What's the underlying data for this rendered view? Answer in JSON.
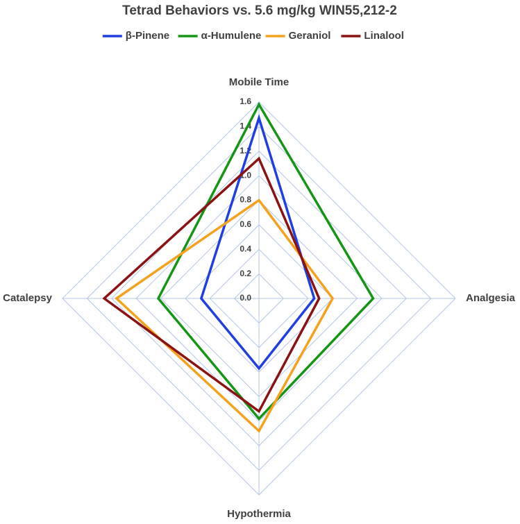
{
  "chart_data": {
    "type": "radar",
    "title": "Tetrad Behaviors vs. 5.6 mg/kg WIN55,212-2",
    "categories": [
      "Mobile Time",
      "Analgesia",
      "Hypothermia",
      "Catalepsy"
    ],
    "series": [
      {
        "name": "β-Pinene",
        "color": "#1f3fe0",
        "values": [
          1.47,
          0.45,
          0.57,
          0.47
        ]
      },
      {
        "name": "α-Humulene",
        "color": "#139613",
        "values": [
          1.58,
          0.93,
          0.98,
          0.82
        ]
      },
      {
        "name": "Geraniol",
        "color": "#f5a11c",
        "values": [
          0.8,
          0.6,
          1.08,
          1.16
        ]
      },
      {
        "name": "Linalool",
        "color": "#8b1212",
        "values": [
          1.14,
          0.49,
          0.92,
          1.26
        ]
      }
    ],
    "rlim": [
      0,
      1.6
    ],
    "rticks": [
      {
        "value": 0,
        "label": "0.0"
      },
      0.2,
      0.4,
      0.6,
      0.8,
      {
        "value": 1,
        "label": "1.0"
      },
      1.2,
      1.4,
      1.6
    ],
    "grid": true,
    "legend": "top"
  }
}
